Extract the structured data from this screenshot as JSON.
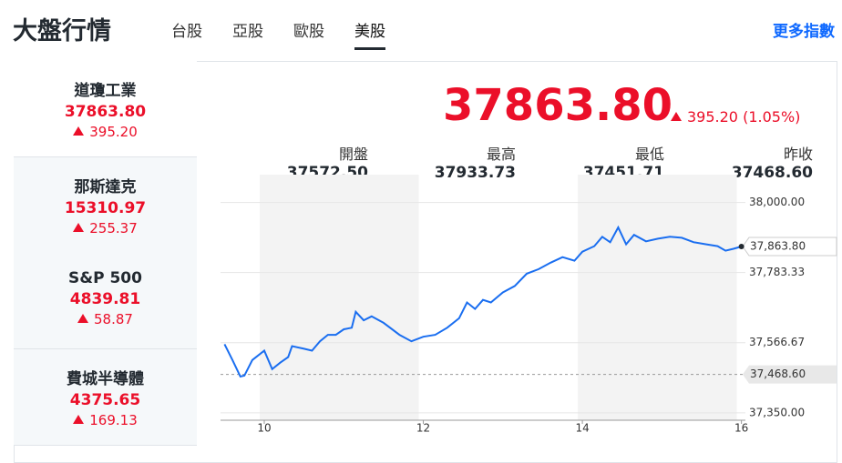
{
  "header": {
    "title": "大盤行情",
    "tabs": [
      "台股",
      "亞股",
      "歐股",
      "美股"
    ],
    "more_link": "更多指數"
  },
  "indices": [
    {
      "name": "道瓊工業",
      "value": "37863.80",
      "change": "395.20"
    },
    {
      "name": "那斯達克",
      "value": "15310.97",
      "change": "255.37"
    },
    {
      "name": "S&P 500",
      "value": "4839.81",
      "change": "58.87"
    },
    {
      "name": "費城半導體",
      "value": "4375.65",
      "change": "169.13"
    }
  ],
  "quote": {
    "price": "37863.80",
    "change": "395.20 (1.05%)",
    "stats": [
      {
        "label": "開盤",
        "value": "37572.50"
      },
      {
        "label": "最高",
        "value": "37933.73"
      },
      {
        "label": "最低",
        "value": "37451.71"
      },
      {
        "label": "昨收",
        "value": "37468.60"
      }
    ]
  },
  "chart_data": {
    "type": "line",
    "color": "#1a6ef0",
    "x": [
      9.5,
      9.6,
      9.7,
      9.75,
      9.85,
      10.0,
      10.1,
      10.2,
      10.3,
      10.35,
      10.5,
      10.6,
      10.7,
      10.8,
      10.9,
      11.0,
      11.1,
      11.15,
      11.25,
      11.35,
      11.5,
      11.7,
      11.85,
      12.0,
      12.15,
      12.3,
      12.45,
      12.55,
      12.65,
      12.75,
      12.85,
      13.0,
      13.15,
      13.3,
      13.45,
      13.6,
      13.75,
      13.9,
      14.0,
      14.15,
      14.25,
      14.35,
      14.45,
      14.55,
      14.65,
      14.8,
      14.95,
      15.1,
      15.25,
      15.4,
      15.55,
      15.7,
      15.8,
      15.9,
      16.0
    ],
    "values": [
      37562,
      37513,
      37462,
      37465,
      37513,
      37542,
      37485,
      37505,
      37522,
      37556,
      37548,
      37542,
      37571,
      37591,
      37591,
      37608,
      37613,
      37662,
      37636,
      37648,
      37628,
      37591,
      37571,
      37585,
      37591,
      37613,
      37642,
      37691,
      37671,
      37699,
      37691,
      37722,
      37742,
      37780,
      37794,
      37814,
      37831,
      37820,
      37848,
      37865,
      37894,
      37877,
      37923,
      37871,
      37900,
      37880,
      37888,
      37894,
      37891,
      37877,
      37871,
      37865,
      37851,
      37857,
      37863.8
    ],
    "xlim": [
      9.45,
      16.05
    ],
    "xticks": [
      10,
      12,
      14,
      16
    ],
    "ylim": [
      37327,
      38086
    ],
    "yticks": [
      {
        "value": 38000,
        "label": "38,000.00"
      },
      {
        "value": 37783.33,
        "label": "37,783.33"
      },
      {
        "value": 37566.67,
        "label": "37,566.67"
      },
      {
        "value": 37350,
        "label": "37,350.00"
      }
    ],
    "last": {
      "value": 37863.8,
      "label": "37,863.80"
    },
    "reference": {
      "value": 37468.6,
      "label": "37,468.60"
    }
  }
}
